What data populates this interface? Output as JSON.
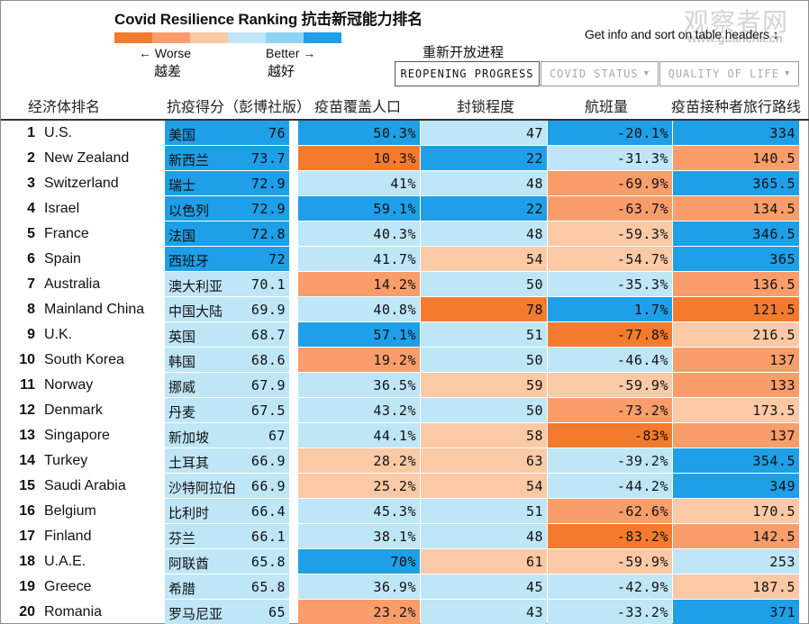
{
  "title": "Covid Resilience Ranking  抗击新冠能力排名",
  "legend": {
    "worse": "← Worse",
    "better": "Better →",
    "worse_cn": "越差",
    "better_cn": "越好",
    "colors": [
      "#f47b2e",
      "#f99d6a",
      "#fbc9a6",
      "#bfe6f7",
      "#8fd3f4",
      "#1e9fe8"
    ]
  },
  "reopening_cn": "重新开放进程",
  "info": "Get info and sort on table headers ↕",
  "watermark": "观察者网",
  "watermark_sub": "www.guancha.cn",
  "tabs": [
    {
      "label": "REOPENING PROGRESS",
      "caret": ""
    },
    {
      "label": "COVID STATUS",
      "caret": "▼"
    },
    {
      "label": "QUALITY OF LIFE",
      "caret": "▼"
    }
  ],
  "headers": {
    "economy": "经济体排名",
    "score": "抗疫得分（彭博社版）",
    "vaccine": "疫苗覆盖人口",
    "lockdown": "封锁程度",
    "flights": "航班量",
    "routes": "疫苗接种者旅行路线"
  },
  "palette": {
    "blue": "#1e9fe8",
    "lightblue": "#bfe6f7",
    "peach": "#fbc9a6",
    "orange": "#f99d6a",
    "deeporange": "#f47b2e"
  },
  "rows": [
    {
      "rank": "1",
      "name": "U.S.",
      "cn": "美国",
      "score": "76",
      "vaccine": "50.3%",
      "lockdown": "47",
      "flights": "-20.1%",
      "routes": "334",
      "c": [
        "blue",
        "blue",
        "lightblue",
        "blue",
        "blue"
      ]
    },
    {
      "rank": "2",
      "name": "New Zealand",
      "cn": "新西兰",
      "score": "73.7",
      "vaccine": "10.3%",
      "lockdown": "22",
      "flights": "-31.3%",
      "routes": "140.5",
      "c": [
        "blue",
        "deeporange",
        "blue",
        "lightblue",
        "orange"
      ]
    },
    {
      "rank": "3",
      "name": "Switzerland",
      "cn": "瑞士",
      "score": "72.9",
      "vaccine": "41%",
      "lockdown": "48",
      "flights": "-69.9%",
      "routes": "365.5",
      "c": [
        "blue",
        "lightblue",
        "lightblue",
        "orange",
        "blue"
      ]
    },
    {
      "rank": "4",
      "name": "Israel",
      "cn": "以色列",
      "score": "72.9",
      "vaccine": "59.1%",
      "lockdown": "22",
      "flights": "-63.7%",
      "routes": "134.5",
      "c": [
        "blue",
        "blue",
        "blue",
        "orange",
        "orange"
      ]
    },
    {
      "rank": "5",
      "name": "France",
      "cn": "法国",
      "score": "72.8",
      "vaccine": "40.3%",
      "lockdown": "48",
      "flights": "-59.3%",
      "routes": "346.5",
      "c": [
        "blue",
        "lightblue",
        "lightblue",
        "peach",
        "blue"
      ]
    },
    {
      "rank": "6",
      "name": "Spain",
      "cn": "西班牙",
      "score": "72",
      "vaccine": "41.7%",
      "lockdown": "54",
      "flights": "-54.7%",
      "routes": "365",
      "c": [
        "blue",
        "lightblue",
        "peach",
        "peach",
        "blue"
      ]
    },
    {
      "rank": "7",
      "name": "Australia",
      "cn": "澳大利亚",
      "score": "70.1",
      "vaccine": "14.2%",
      "lockdown": "50",
      "flights": "-35.3%",
      "routes": "136.5",
      "c": [
        "lightblue",
        "orange",
        "lightblue",
        "lightblue",
        "orange"
      ]
    },
    {
      "rank": "8",
      "name": "Mainland China",
      "cn": "中国大陆",
      "score": "69.9",
      "vaccine": "40.8%",
      "lockdown": "78",
      "flights": "1.7%",
      "routes": "121.5",
      "c": [
        "lightblue",
        "lightblue",
        "deeporange",
        "blue",
        "deeporange"
      ]
    },
    {
      "rank": "9",
      "name": "U.K.",
      "cn": "英国",
      "score": "68.7",
      "vaccine": "57.1%",
      "lockdown": "51",
      "flights": "-77.8%",
      "routes": "216.5",
      "c": [
        "lightblue",
        "blue",
        "lightblue",
        "deeporange",
        "peach"
      ]
    },
    {
      "rank": "10",
      "name": "South Korea",
      "cn": "韩国",
      "score": "68.6",
      "vaccine": "19.2%",
      "lockdown": "50",
      "flights": "-46.4%",
      "routes": "137",
      "c": [
        "lightblue",
        "orange",
        "lightblue",
        "lightblue",
        "orange"
      ]
    },
    {
      "rank": "11",
      "name": "Norway",
      "cn": "挪威",
      "score": "67.9",
      "vaccine": "36.5%",
      "lockdown": "59",
      "flights": "-59.9%",
      "routes": "133",
      "c": [
        "lightblue",
        "lightblue",
        "peach",
        "peach",
        "orange"
      ]
    },
    {
      "rank": "12",
      "name": "Denmark",
      "cn": "丹麦",
      "score": "67.5",
      "vaccine": "43.2%",
      "lockdown": "50",
      "flights": "-73.2%",
      "routes": "173.5",
      "c": [
        "lightblue",
        "lightblue",
        "lightblue",
        "orange",
        "peach"
      ]
    },
    {
      "rank": "13",
      "name": "Singapore",
      "cn": "新加坡",
      "score": "67",
      "vaccine": "44.1%",
      "lockdown": "58",
      "flights": "-83%",
      "routes": "137",
      "c": [
        "lightblue",
        "lightblue",
        "peach",
        "deeporange",
        "orange"
      ]
    },
    {
      "rank": "14",
      "name": "Turkey",
      "cn": "土耳其",
      "score": "66.9",
      "vaccine": "28.2%",
      "lockdown": "63",
      "flights": "-39.2%",
      "routes": "354.5",
      "c": [
        "lightblue",
        "peach",
        "peach",
        "lightblue",
        "blue"
      ]
    },
    {
      "rank": "15",
      "name": "Saudi Arabia",
      "cn": "沙特阿拉伯",
      "score": "66.9",
      "vaccine": "25.2%",
      "lockdown": "54",
      "flights": "-44.2%",
      "routes": "349",
      "c": [
        "lightblue",
        "peach",
        "peach",
        "lightblue",
        "blue"
      ]
    },
    {
      "rank": "16",
      "name": "Belgium",
      "cn": "比利时",
      "score": "66.4",
      "vaccine": "45.3%",
      "lockdown": "51",
      "flights": "-62.6%",
      "routes": "170.5",
      "c": [
        "lightblue",
        "lightblue",
        "lightblue",
        "orange",
        "peach"
      ]
    },
    {
      "rank": "17",
      "name": "Finland",
      "cn": "芬兰",
      "score": "66.1",
      "vaccine": "38.1%",
      "lockdown": "48",
      "flights": "-83.2%",
      "routes": "142.5",
      "c": [
        "lightblue",
        "lightblue",
        "lightblue",
        "deeporange",
        "orange"
      ]
    },
    {
      "rank": "18",
      "name": "U.A.E.",
      "cn": "阿联酋",
      "score": "65.8",
      "vaccine": "70%",
      "lockdown": "61",
      "flights": "-59.9%",
      "routes": "253",
      "c": [
        "lightblue",
        "blue",
        "peach",
        "peach",
        "lightblue"
      ]
    },
    {
      "rank": "19",
      "name": "Greece",
      "cn": "希腊",
      "score": "65.8",
      "vaccine": "36.9%",
      "lockdown": "45",
      "flights": "-42.9%",
      "routes": "187.5",
      "c": [
        "lightblue",
        "lightblue",
        "lightblue",
        "lightblue",
        "peach"
      ]
    },
    {
      "rank": "20",
      "name": "Romania",
      "cn": "罗马尼亚",
      "score": "65",
      "vaccine": "23.2%",
      "lockdown": "43",
      "flights": "-33.2%",
      "routes": "371",
      "c": [
        "lightblue",
        "orange",
        "lightblue",
        "lightblue",
        "blue"
      ]
    }
  ]
}
